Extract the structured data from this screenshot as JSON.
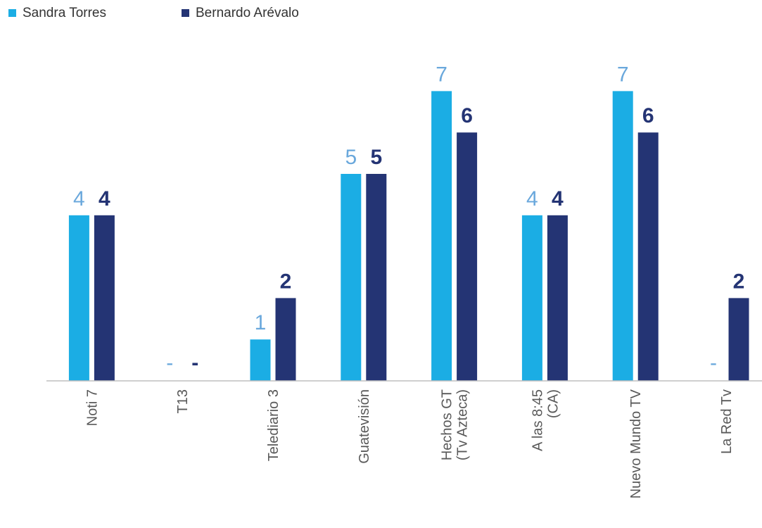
{
  "chart_data": {
    "type": "bar",
    "categories": [
      "Noti 7",
      "T13",
      "Telediario 3",
      "Guatevisión",
      "Hechos GT\n(Tv Azteca)",
      "A las 8:45\n(CA)",
      "Nuevo Mundo TV",
      "La Red Tv"
    ],
    "series": [
      {
        "name": "Sandra Torres",
        "color": "#1BADE4",
        "label_color": "#6AA8DC",
        "values": [
          4,
          0,
          1,
          5,
          7,
          4,
          7,
          0
        ],
        "labels": [
          "4",
          "-",
          "1",
          "5",
          "7",
          "4",
          "7",
          "-"
        ]
      },
      {
        "name": "Bernardo Arévalo",
        "color": "#243474",
        "label_color": "#243474",
        "values": [
          4,
          0,
          2,
          5,
          6,
          4,
          6,
          2
        ],
        "labels": [
          "4",
          "-",
          "2",
          "5",
          "6",
          "4",
          "6",
          "2"
        ]
      }
    ],
    "ylim": [
      0,
      7
    ],
    "grid": false,
    "legend_position": "top-left",
    "axis_color": "#BFBFBF",
    "tick_label_color": "#595959"
  }
}
